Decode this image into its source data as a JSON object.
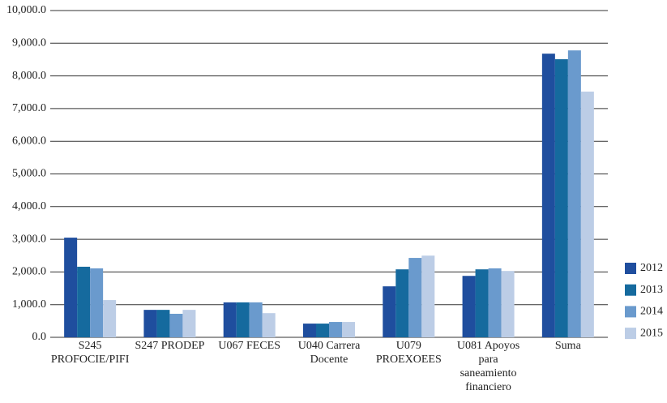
{
  "chart_data": {
    "type": "bar",
    "categories": [
      "S245\nPROFOCIE/PIFI",
      "S247 PRODEP",
      "U067 FECES",
      "U040 Carrera\nDocente",
      "U079\nPROEXOEES",
      "U081 Apoyos\npara\nsaneamiento\nfinanciero",
      "Suma"
    ],
    "series": [
      {
        "name": "2012",
        "color": "#1f4e9e",
        "values": [
          3050,
          840,
          1070,
          420,
          1560,
          1880,
          8680
        ]
      },
      {
        "name": "2013",
        "color": "#156a9e",
        "values": [
          2160,
          840,
          1070,
          420,
          2080,
          2080,
          8510
        ]
      },
      {
        "name": "2014",
        "color": "#6a9acd",
        "values": [
          2110,
          720,
          1070,
          470,
          2430,
          2110,
          8780
        ]
      },
      {
        "name": "2015",
        "color": "#bccde6",
        "values": [
          1140,
          840,
          740,
          470,
          2500,
          2030,
          7520
        ]
      }
    ],
    "ylim": [
      0,
      10000
    ],
    "yticks": [
      {
        "value": 0,
        "label": "0.0"
      },
      {
        "value": 1000,
        "label": "1,000.0"
      },
      {
        "value": 2000,
        "label": "2,000.0"
      },
      {
        "value": 3000,
        "label": "3,000.0"
      },
      {
        "value": 4000,
        "label": "4,000.0"
      },
      {
        "value": 5000,
        "label": "5,000.0"
      },
      {
        "value": 6000,
        "label": "6,000.0"
      },
      {
        "value": 7000,
        "label": "7,000.0"
      },
      {
        "value": 8000,
        "label": "8,000.0"
      },
      {
        "value": 9000,
        "label": "9,000.0"
      },
      {
        "value": 10000,
        "label": "10,000.0"
      }
    ],
    "grid": true,
    "legend": "right"
  }
}
